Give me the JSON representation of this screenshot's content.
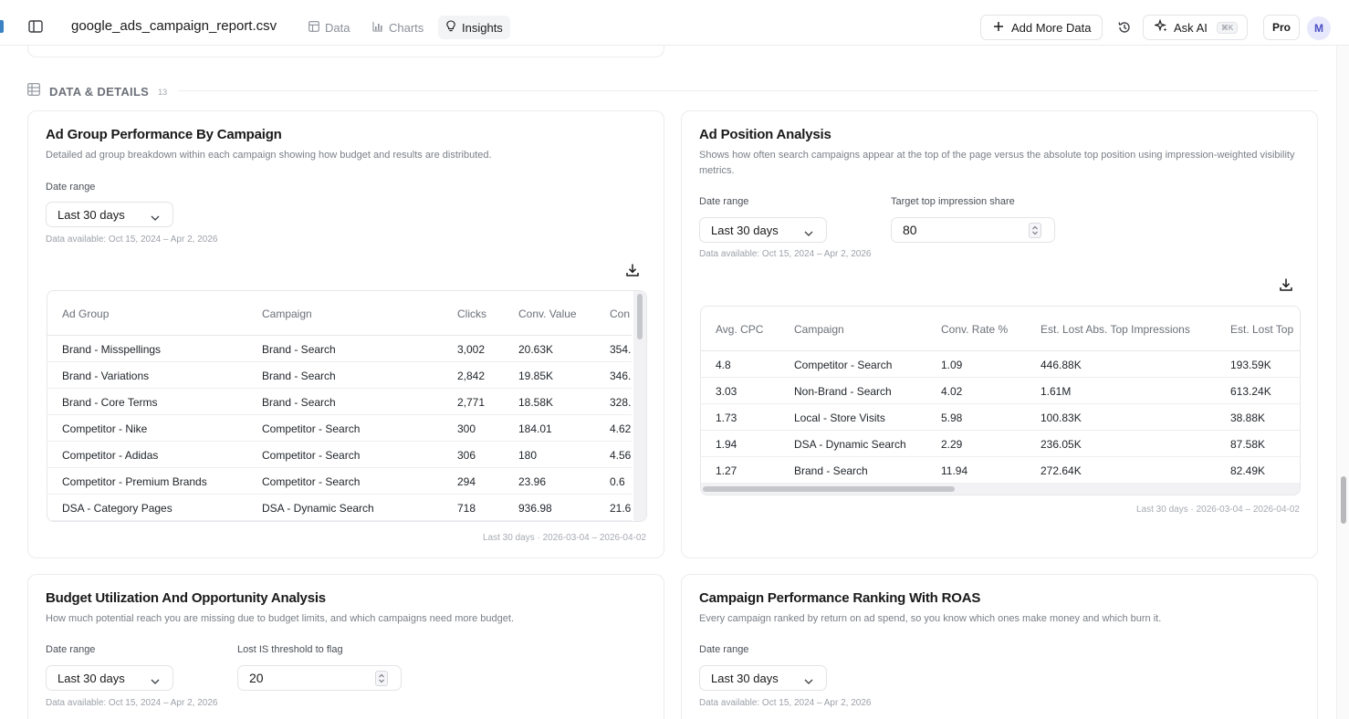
{
  "topbar": {
    "file_name": "google_ads_campaign_report.csv",
    "tabs": [
      {
        "label": "Data",
        "icon": "table-icon"
      },
      {
        "label": "Charts",
        "icon": "bar-chart-icon"
      },
      {
        "label": "Insights",
        "icon": "lightbulb-icon",
        "active": true
      }
    ],
    "add_more_data": "Add More Data",
    "ask_ai": "Ask AI",
    "ask_ai_shortcut": "⌘K",
    "pro": "Pro",
    "avatar_initial": "M"
  },
  "section": {
    "label": "DATA & DETAILS",
    "count": "13"
  },
  "cards": {
    "ad_group": {
      "title": "Ad Group Performance By Campaign",
      "description": "Detailed ad group breakdown within each campaign showing how budget and results are distributed.",
      "date_label": "Date range",
      "date_value": "Last 30 days",
      "availability": "Data available: Oct 15, 2024 – Apr 2, 2026",
      "footnote": "Last 30 days · 2026-03-04 – 2026-04-02",
      "columns": [
        "Ad Group",
        "Campaign",
        "Clicks",
        "Conv. Value",
        "Con"
      ],
      "rows": [
        [
          "Brand - Misspellings",
          "Brand - Search",
          "3,002",
          "20.63K",
          "354."
        ],
        [
          "Brand - Variations",
          "Brand - Search",
          "2,842",
          "19.85K",
          "346."
        ],
        [
          "Brand - Core Terms",
          "Brand - Search",
          "2,771",
          "18.58K",
          "328."
        ],
        [
          "Competitor - Nike",
          "Competitor - Search",
          "300",
          "184.01",
          "4.62"
        ],
        [
          "Competitor - Adidas",
          "Competitor - Search",
          "306",
          "180",
          "4.56"
        ],
        [
          "Competitor - Premium Brands",
          "Competitor - Search",
          "294",
          "23.96",
          "0.6"
        ],
        [
          "DSA - Category Pages",
          "DSA - Dynamic Search",
          "718",
          "936.98",
          "21.6"
        ]
      ]
    },
    "ad_position": {
      "title": "Ad Position Analysis",
      "description": "Shows how often search campaigns appear at the top of the page versus the absolute top position using impression-weighted visibility metrics.",
      "date_label": "Date range",
      "date_value": "Last 30 days",
      "target_label": "Target top impression share",
      "target_value": "80",
      "availability": "Data available: Oct 15, 2024 – Apr 2, 2026",
      "footnote": "Last 30 days · 2026-03-04 – 2026-04-02",
      "columns": [
        "Avg. CPC",
        "Campaign",
        "Conv. Rate %",
        "Est. Lost Abs. Top Impressions",
        "Est. Lost Top"
      ],
      "rows": [
        [
          "4.8",
          "Competitor - Search",
          "1.09",
          "446.88K",
          "193.59K"
        ],
        [
          "3.03",
          "Non-Brand - Search",
          "4.02",
          "1.61M",
          "613.24K"
        ],
        [
          "1.73",
          "Local - Store Visits",
          "5.98",
          "100.83K",
          "38.88K"
        ],
        [
          "1.94",
          "DSA - Dynamic Search",
          "2.29",
          "236.05K",
          "87.58K"
        ],
        [
          "1.27",
          "Brand - Search",
          "11.94",
          "272.64K",
          "82.49K"
        ]
      ]
    },
    "budget": {
      "title": "Budget Utilization And Opportunity Analysis",
      "description": "How much potential reach you are missing due to budget limits, and which campaigns need more budget.",
      "date_label": "Date range",
      "date_value": "Last 30 days",
      "threshold_label": "Lost IS threshold to flag",
      "threshold_value": "20",
      "availability": "Data available: Oct 15, 2024 – Apr 2, 2026"
    },
    "roas": {
      "title": "Campaign Performance Ranking With ROAS",
      "description": "Every campaign ranked by return on ad spend, so you know which ones make money and which burn it.",
      "date_label": "Date range",
      "date_value": "Last 30 days",
      "availability": "Data available: Oct 15, 2024 – Apr 2, 2026"
    }
  }
}
